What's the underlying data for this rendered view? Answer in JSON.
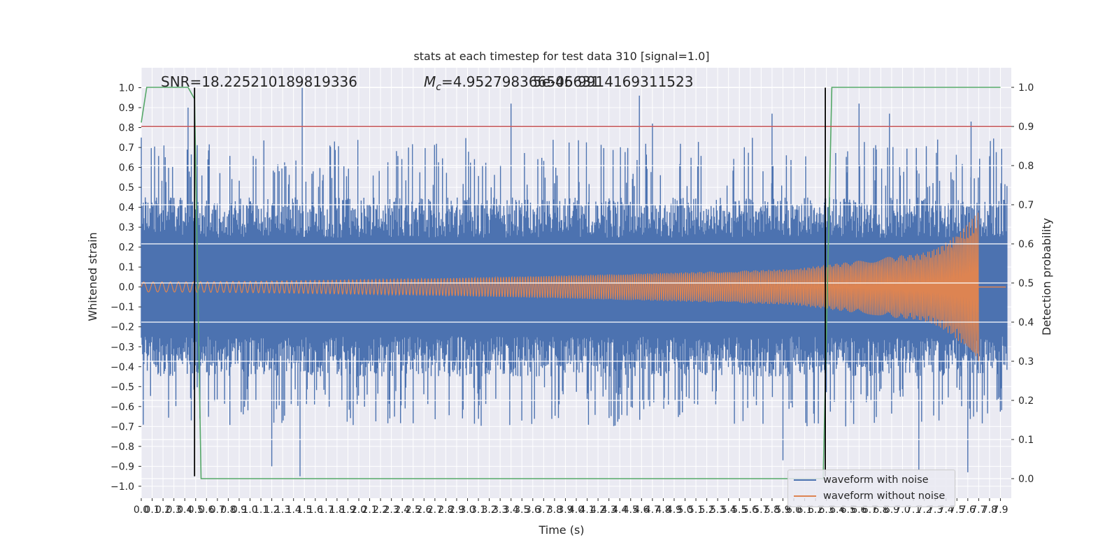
{
  "chart_data": {
    "type": "line",
    "title": "stats at each timestep for test data 310 [signal=1.0]",
    "xlabel": "Time (s)",
    "ylabel_left": "Whitened strain",
    "ylabel_right": "Detection probability",
    "xlim": [
      0.0,
      8.0
    ],
    "ylim_left": [
      -1.06,
      1.1
    ],
    "ylim_right": [
      -0.05,
      1.05
    ],
    "x_ticks": [
      0.0,
      0.1,
      0.2,
      0.3,
      0.4,
      0.5,
      0.6,
      0.7,
      0.8,
      0.9,
      1.0,
      1.1,
      1.2,
      1.3,
      1.4,
      1.5,
      1.6,
      1.7,
      1.8,
      1.9,
      2.0,
      2.1,
      2.2,
      2.3,
      2.4,
      2.5,
      2.6,
      2.7,
      2.8,
      2.9,
      3.0,
      3.1,
      3.2,
      3.3,
      3.4,
      3.5,
      3.6,
      3.7,
      3.8,
      3.9,
      4.0,
      4.1,
      4.2,
      4.3,
      4.4,
      4.5,
      4.6,
      4.7,
      4.8,
      4.9,
      5.0,
      5.1,
      5.2,
      5.3,
      5.4,
      5.5,
      5.6,
      5.7,
      5.8,
      5.9,
      6.0,
      6.1,
      6.2,
      6.3,
      6.4,
      6.5,
      6.6,
      6.7,
      6.8,
      6.9,
      7.0,
      7.1,
      7.2,
      7.3,
      7.4,
      7.5,
      7.6,
      7.7,
      7.8,
      7.9
    ],
    "x_tick_labels": [
      "0.0",
      "0.1",
      "0.2",
      "0.3",
      "0.4",
      "0.5",
      "0.6",
      "0.7",
      "0.8",
      "0.9",
      "1.0",
      "1.1",
      "1.2",
      "1.3",
      "1.4",
      "1.5",
      "1.6",
      "1.7",
      "1.8",
      "1.9",
      "2.0",
      "2.1",
      "2.2",
      "2.3",
      "2.4",
      "2.5",
      "2.6",
      "2.7",
      "2.8",
      "2.9",
      "3.0",
      "3.1",
      "3.2",
      "3.3",
      "3.4",
      "3.5",
      "3.6",
      "3.7",
      "3.8",
      "3.9",
      "4.0",
      "4.1",
      "4.2",
      "4.3",
      "4.4",
      "4.5",
      "4.6",
      "4.7",
      "4.8",
      "4.9",
      "5.0",
      "5.1",
      "5.2",
      "5.3",
      "5.4",
      "5.5",
      "5.6",
      "5.7",
      "5.8",
      "5.9",
      "6.0",
      "6.1",
      "6.2",
      "6.3",
      "6.4",
      "6.5",
      "6.6",
      "6.7",
      "6.8",
      "6.9",
      "7.0",
      "7.1",
      "7.2",
      "7.3",
      "7.4",
      "7.5",
      "7.6",
      "7.7",
      "7.8",
      "7.9"
    ],
    "y_ticks_left": [
      1.0,
      0.9,
      0.8,
      0.7,
      0.6,
      0.5,
      0.4,
      0.3,
      0.2,
      0.1,
      0.0,
      -0.1,
      -0.2,
      -0.3,
      -0.4,
      -0.5,
      -0.6,
      -0.7,
      -0.8,
      -0.9,
      -1.0
    ],
    "y_tick_labels_left": [
      "1.0",
      "0.9",
      "0.8",
      "0.7",
      "0.6",
      "0.5",
      "0.4",
      "0.3",
      "0.2",
      "0.1",
      "0.0",
      "−0.1",
      "−0.2",
      "−0.3",
      "−0.4",
      "−0.5",
      "−0.6",
      "−0.7",
      "−0.8",
      "−0.9",
      "−1.0"
    ],
    "y_ticks_right": [
      1.0,
      0.9,
      0.8,
      0.7,
      0.6,
      0.5,
      0.4,
      0.3,
      0.2,
      0.1,
      0.0
    ],
    "y_tick_labels_right": [
      "1.0",
      "0.9",
      "0.8",
      "0.7",
      "0.6",
      "0.5",
      "0.4",
      "0.3",
      "0.2",
      "0.1",
      "0.0"
    ],
    "grid": true,
    "annotations": {
      "snr": "SNR=18.225210189819336",
      "mc_symbol": "M",
      "mc_subscript": "c",
      "mc_value": "=4.952798366546631",
      "mc_overlap": "5e-05 9914169311523"
    },
    "series": [
      {
        "name": "waveform with noise",
        "axis": "left",
        "color": "#4c72b0",
        "description_envelope": {
          "x": [
            0.0,
            7.9
          ],
          "typical_amplitude": 0.45,
          "peaks": [
            [
              0.43,
              0.9
            ],
            [
              1.48,
              1.0
            ],
            [
              3.4,
              0.92
            ],
            [
              4.58,
              0.96
            ],
            [
              4.7,
              0.82
            ],
            [
              5.8,
              0.87
            ],
            [
              6.6,
              0.92
            ],
            [
              6.88,
              0.87
            ],
            [
              7.63,
              0.83
            ],
            [
              1.46,
              -0.95
            ],
            [
              7.15,
              -0.92
            ],
            [
              7.6,
              -0.93
            ],
            [
              5.9,
              -0.87
            ],
            [
              1.2,
              -0.9
            ]
          ]
        }
      },
      {
        "name": "waveform without noise",
        "axis": "left",
        "color": "#dd8452",
        "chirp": {
          "start_x": 0.0,
          "end_x": 7.7,
          "start_amplitude": 0.025,
          "amplitude_at_6": 0.09,
          "amplitude_at_7": 0.16,
          "peak_amplitude": 0.38,
          "after_merger_value": 0.0,
          "end_of_signal_x": 7.9
        }
      },
      {
        "name": "detection probability",
        "axis": "right",
        "color": "#55a868",
        "x": [
          0.0,
          0.05,
          0.1,
          0.2,
          0.3,
          0.43,
          0.49,
          0.55,
          0.6,
          1.0,
          2.0,
          3.0,
          4.0,
          5.0,
          6.0,
          6.2,
          6.27,
          6.31,
          6.35,
          6.4,
          7.0,
          7.9
        ],
        "y": [
          0.91,
          1.0,
          1.0,
          1.0,
          1.0,
          1.0,
          0.97,
          0.0,
          0.0,
          0.0,
          0.0,
          0.0,
          0.0,
          0.0,
          0.0,
          0.0,
          0.0,
          0.5,
          1.0,
          1.0,
          1.0,
          1.0
        ]
      },
      {
        "name": "threshold",
        "axis": "right",
        "color": "#c44e52",
        "y_constant": 0.9
      }
    ],
    "vertical_lines": {
      "color": "#000000",
      "x": [
        0.49,
        6.29
      ],
      "y_range_left": [
        -0.95,
        1.0
      ]
    },
    "legend": {
      "placement": "bottom-right",
      "entries": [
        "waveform with noise",
        "waveform without noise"
      ]
    },
    "colors": {
      "background": "#eaeaf2",
      "grid": "#ffffff",
      "noise": "#4c72b0",
      "clean": "#dd8452",
      "prob": "#55a868",
      "threshold": "#c44e52"
    }
  }
}
